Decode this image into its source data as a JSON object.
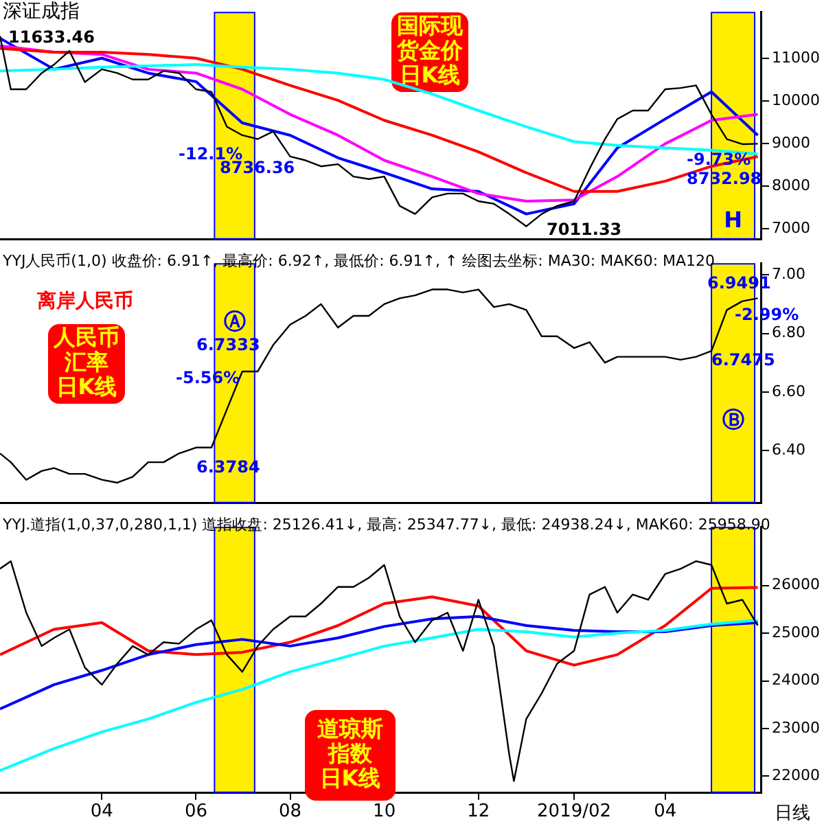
{
  "chart_data": [
    {
      "type": "line",
      "title": "深证成指",
      "x": [
        "2018-01-25",
        "2018-02-01",
        "2018-02-11",
        "2018-02-21",
        "2018-03-01",
        "2018-03-11",
        "2018-03-21",
        "2018-04-01",
        "2018-04-11",
        "2018-04-21",
        "2018-05-01",
        "2018-05-11",
        "2018-05-21",
        "2018-06-01",
        "2018-06-11",
        "2018-06-21",
        "2018-07-01",
        "2018-07-11",
        "2018-07-21",
        "2018-08-01",
        "2018-08-11",
        "2018-08-21",
        "2018-09-01",
        "2018-09-11",
        "2018-09-21",
        "2018-10-01",
        "2018-10-11",
        "2018-10-21",
        "2018-11-01",
        "2018-11-11",
        "2018-11-21",
        "2018-12-01",
        "2018-12-11",
        "2018-12-21",
        "2019-01-01",
        "2019-01-11",
        "2019-01-21",
        "2019-02-01",
        "2019-02-11",
        "2019-02-21",
        "2019-03-01",
        "2019-03-11",
        "2019-03-21",
        "2019-04-01",
        "2019-04-11",
        "2019-04-21",
        "2019-05-01",
        "2019-05-11",
        "2019-05-21",
        "2019-05-31"
      ],
      "series": [
        {
          "color": "#000000",
          "values": [
            11530,
            10280,
            10280,
            10660,
            10860,
            11180,
            10450,
            10750,
            10660,
            10510,
            10510,
            10710,
            10660,
            10280,
            10220,
            9400,
            9200,
            9110,
            9290,
            8700,
            8610,
            8470,
            8520,
            8230,
            8170,
            8230,
            7540,
            7350,
            7740,
            7830,
            7830,
            7650,
            7590,
            7350,
            7060,
            7350,
            7540,
            7650,
            8410,
            9110,
            9580,
            9780,
            9780,
            10280,
            10310,
            10370,
            9690,
            9110,
            8990,
            9000
          ]
        },
        {
          "color": "#00ffff",
          "x": [
            "2018-01-25",
            "2018-03-01",
            "2018-04-01",
            "2018-05-01",
            "2018-06-01",
            "2018-07-01",
            "2018-08-01",
            "2018-09-01",
            "2018-10-01",
            "2018-11-01",
            "2018-12-01",
            "2019-01-01",
            "2019-02-01",
            "2019-03-01",
            "2019-04-01",
            "2019-05-01",
            "2019-05-31"
          ],
          "values": [
            10710,
            10750,
            10800,
            10830,
            10860,
            10800,
            10750,
            10660,
            10510,
            10170,
            9780,
            9400,
            9050,
            8960,
            8900,
            8850,
            8760
          ]
        },
        {
          "color": "#ff0000",
          "x": [
            "2018-01-25",
            "2018-03-01",
            "2018-04-01",
            "2018-05-01",
            "2018-06-01",
            "2018-07-01",
            "2018-08-01",
            "2018-09-01",
            "2018-10-01",
            "2018-11-01",
            "2018-12-01",
            "2019-01-01",
            "2019-02-01",
            "2019-03-01",
            "2019-04-01",
            "2019-05-01",
            "2019-05-31"
          ],
          "values": [
            11240,
            11150,
            11150,
            11100,
            11010,
            10750,
            10370,
            10020,
            9550,
            9200,
            8810,
            8320,
            7880,
            7880,
            8120,
            8470,
            8700
          ]
        },
        {
          "color": "#ff00ff",
          "x": [
            "2018-01-25",
            "2018-03-01",
            "2018-04-01",
            "2018-05-01",
            "2018-06-01",
            "2018-07-01",
            "2018-08-01",
            "2018-09-01",
            "2018-10-01",
            "2018-11-01",
            "2018-12-01",
            "2019-01-01",
            "2019-02-01",
            "2019-03-01",
            "2019-04-01",
            "2019-05-01",
            "2019-05-31"
          ],
          "values": [
            11300,
            11150,
            11100,
            10750,
            10660,
            10280,
            9690,
            9200,
            8610,
            8230,
            7830,
            7650,
            7680,
            8230,
            9000,
            9550,
            9690
          ]
        },
        {
          "color": "#0000ff",
          "x": [
            "2018-01-25",
            "2018-03-01",
            "2018-04-01",
            "2018-05-01",
            "2018-06-01",
            "2018-07-01",
            "2018-08-01",
            "2018-09-01",
            "2018-10-01",
            "2018-11-01",
            "2018-12-01",
            "2019-01-01",
            "2019-02-01",
            "2019-03-01",
            "2019-04-01",
            "2019-05-01",
            "2019-05-31"
          ],
          "values": [
            11480,
            10750,
            11010,
            10660,
            10460,
            9490,
            9200,
            8670,
            8320,
            7940,
            7880,
            7350,
            7590,
            8900,
            9580,
            10220,
            9200
          ]
        }
      ],
      "xlim": [
        "2018-01-25",
        "2019-06-02"
      ],
      "ylim": [
        6750,
        12100
      ],
      "yticks": [
        7000,
        8000,
        9000,
        10000,
        11000
      ],
      "tick_labels": "y",
      "bands": [
        {
          "axis": "x",
          "from": "2018-06-13",
          "to": "2018-07-09",
          "color": "#ffee00"
        },
        {
          "axis": "x",
          "from": "2019-05-01",
          "to": "2019-05-29",
          "color": "#ffee00",
          "label": "H"
        }
      ],
      "annotations": [
        "11633.46",
        "7011.33",
        "-12.1%",
        "8736.36",
        "-9.73%",
        "8732.98",
        "国际现货金价日K线"
      ]
    },
    {
      "type": "line",
      "title": "YYJ人民币(1,0) 收盘价: 6.91↑, 最高价: 6.92↑, 最低价: 6.91↑, ↑ 绘图去坐标: MA30: MAK60: MA120",
      "x": [
        "2018-01-25",
        "2018-02-01",
        "2018-02-11",
        "2018-02-21",
        "2018-03-01",
        "2018-03-11",
        "2018-03-21",
        "2018-04-01",
        "2018-04-11",
        "2018-04-21",
        "2018-05-01",
        "2018-05-11",
        "2018-05-21",
        "2018-06-01",
        "2018-06-11",
        "2018-06-21",
        "2018-07-01",
        "2018-07-11",
        "2018-07-21",
        "2018-08-01",
        "2018-08-11",
        "2018-08-21",
        "2018-09-01",
        "2018-09-11",
        "2018-09-21",
        "2018-10-01",
        "2018-10-11",
        "2018-10-21",
        "2018-11-01",
        "2018-11-11",
        "2018-11-21",
        "2018-12-01",
        "2018-12-11",
        "2018-12-21",
        "2019-01-01",
        "2019-01-11",
        "2019-01-21",
        "2019-02-01",
        "2019-02-11",
        "2019-02-21",
        "2019-03-01",
        "2019-03-11",
        "2019-03-21",
        "2019-04-01",
        "2019-04-11",
        "2019-04-21",
        "2019-05-01",
        "2019-05-11",
        "2019-05-21",
        "2019-05-31"
      ],
      "series": [
        {
          "color": "#000000",
          "values": [
            6.39,
            6.36,
            6.3,
            6.33,
            6.34,
            6.32,
            6.32,
            6.3,
            6.29,
            6.31,
            6.36,
            6.36,
            6.39,
            6.41,
            6.41,
            6.54,
            6.67,
            6.67,
            6.76,
            6.83,
            6.86,
            6.9,
            6.82,
            6.86,
            6.86,
            6.9,
            6.92,
            6.93,
            6.95,
            6.95,
            6.94,
            6.95,
            6.89,
            6.9,
            6.88,
            6.79,
            6.79,
            6.75,
            6.77,
            6.7,
            6.72,
            6.72,
            6.72,
            6.72,
            6.71,
            6.72,
            6.74,
            6.88,
            6.91,
            6.92
          ]
        }
      ],
      "xlim": [
        "2018-01-25",
        "2019-06-02"
      ],
      "ylim": [
        6.22,
        7.04
      ],
      "yticks": [
        {
          "value": 6.4,
          "label": "6.40"
        },
        {
          "value": 6.6,
          "label": "6.60"
        },
        {
          "value": 6.8,
          "label": "6.80"
        },
        {
          "value": 7.0,
          "label": "7.00"
        }
      ],
      "tick_labels": "y",
      "bands": [
        {
          "axis": "x",
          "from": "2018-06-13",
          "to": "2018-07-09",
          "color": "#ffee00",
          "label": "Ⓐ"
        },
        {
          "axis": "x",
          "from": "2019-05-01",
          "to": "2019-05-29",
          "color": "#ffee00",
          "label": "Ⓑ"
        }
      ],
      "annotations": [
        "离岸人民币",
        "人民币汇率日K线",
        "6.7333",
        "-5.56%",
        "6.3784",
        "6.9491",
        "-2.99%",
        "6.7475"
      ]
    },
    {
      "type": "line",
      "title": "YYJ.道指(1,0,37,0,280,1,1) 道指收盘: 25126.41↓, 最高: 25347.77↓, 最低: 24938.24↓, MAK60: 25958.90",
      "xlabel": "日线",
      "series": [
        {
          "color": "#000000",
          "x": [
            "2018-01-25",
            "2018-02-01",
            "2018-02-11",
            "2018-02-21",
            "2018-03-01",
            "2018-03-11",
            "2018-03-21",
            "2018-04-01",
            "2018-04-11",
            "2018-04-21",
            "2018-05-01",
            "2018-05-11",
            "2018-05-21",
            "2018-06-01",
            "2018-06-11",
            "2018-06-21",
            "2018-07-01",
            "2018-07-11",
            "2018-07-21",
            "2018-08-01",
            "2018-08-11",
            "2018-08-21",
            "2018-09-01",
            "2018-09-11",
            "2018-09-21",
            "2018-10-01",
            "2018-10-11",
            "2018-10-21",
            "2018-11-01",
            "2018-11-11",
            "2018-11-21",
            "2018-12-01",
            "2018-12-11",
            "2018-12-21",
            "2018-12-24",
            "2019-01-01",
            "2019-01-11",
            "2019-01-21",
            "2019-02-01",
            "2019-02-11",
            "2019-02-21",
            "2019-03-01",
            "2019-03-11",
            "2019-03-21",
            "2019-04-01",
            "2019-04-11",
            "2019-04-21",
            "2019-05-01",
            "2019-05-11",
            "2019-05-21",
            "2019-05-31"
          ],
          "values": [
            26350,
            26510,
            25430,
            24730,
            24900,
            25080,
            24280,
            23920,
            24360,
            24730,
            24550,
            24810,
            24780,
            25080,
            25270,
            24550,
            24190,
            24730,
            25080,
            25350,
            25350,
            25620,
            25970,
            25970,
            26160,
            26430,
            25350,
            24810,
            25270,
            25430,
            24630,
            25700,
            24730,
            22450,
            21900,
            23200,
            23740,
            24360,
            24630,
            25810,
            25970,
            25430,
            25810,
            25700,
            26240,
            26350,
            26510,
            26430,
            25620,
            25700,
            25160
          ]
        },
        {
          "color": "#00ffff",
          "x": [
            "2018-01-25",
            "2018-03-01",
            "2018-04-01",
            "2018-05-01",
            "2018-06-01",
            "2018-07-01",
            "2018-08-01",
            "2018-09-01",
            "2018-10-01",
            "2018-11-01",
            "2018-12-01",
            "2019-01-01",
            "2019-02-01",
            "2019-03-01",
            "2019-04-01",
            "2019-05-01",
            "2019-05-31"
          ],
          "values": [
            22120,
            22580,
            22930,
            23200,
            23550,
            23820,
            24190,
            24460,
            24730,
            24900,
            25080,
            25030,
            24920,
            25000,
            25060,
            25190,
            25270
          ]
        },
        {
          "color": "#0000ff",
          "x": [
            "2018-01-25",
            "2018-03-01",
            "2018-04-01",
            "2018-05-01",
            "2018-06-01",
            "2018-07-01",
            "2018-08-01",
            "2018-09-01",
            "2018-10-01",
            "2018-11-01",
            "2018-12-01",
            "2019-01-01",
            "2019-02-01",
            "2019-03-01",
            "2019-04-01",
            "2019-05-01",
            "2019-05-31"
          ],
          "values": [
            23410,
            23920,
            24220,
            24550,
            24760,
            24870,
            24730,
            24900,
            25140,
            25300,
            25350,
            25160,
            25060,
            25030,
            25030,
            25160,
            25220
          ]
        },
        {
          "color": "#ff0000",
          "x": [
            "2018-01-25",
            "2018-03-01",
            "2018-04-01",
            "2018-05-01",
            "2018-06-01",
            "2018-07-01",
            "2018-08-01",
            "2018-09-01",
            "2018-10-01",
            "2018-11-01",
            "2018-12-01",
            "2019-01-01",
            "2019-02-01",
            "2019-03-01",
            "2019-04-01",
            "2019-05-01",
            "2019-05-31"
          ],
          "values": [
            24550,
            25080,
            25220,
            24630,
            24550,
            24600,
            24810,
            25160,
            25620,
            25760,
            25570,
            24630,
            24330,
            24550,
            25160,
            25940,
            25960
          ]
        }
      ],
      "xlim": [
        "2018-01-25",
        "2019-06-02"
      ],
      "xticks": [
        {
          "value": "2018-04-01",
          "label": "04"
        },
        {
          "value": "2018-06-01",
          "label": "06"
        },
        {
          "value": "2018-08-01",
          "label": "08"
        },
        {
          "value": "2018-10-01",
          "label": "10"
        },
        {
          "value": "2018-12-01",
          "label": "12"
        },
        {
          "value": "2019-02-01",
          "label": "2019/02"
        },
        {
          "value": "2019-04-01",
          "label": "04"
        }
      ],
      "ylim": [
        21650,
        27230
      ],
      "yticks": [
        22000,
        23000,
        24000,
        25000,
        26000
      ],
      "bands": [
        {
          "axis": "x",
          "from": "2018-06-13",
          "to": "2018-07-09",
          "color": "#ffee00"
        },
        {
          "axis": "x",
          "from": "2019-05-01",
          "to": "2019-05-29",
          "color": "#ffee00"
        }
      ],
      "annotations": [
        "道琼斯指数日K线"
      ]
    }
  ]
}
